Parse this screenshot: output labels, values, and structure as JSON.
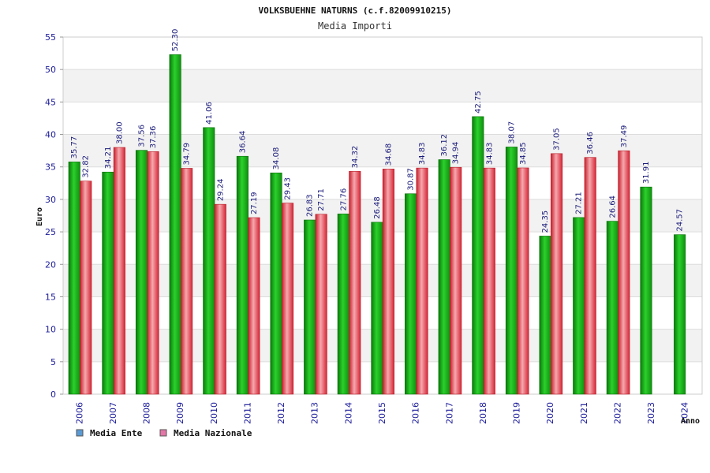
{
  "chart_data": {
    "type": "bar",
    "title": "VOLKSBUEHNE NATURNS (c.f.82009910215)",
    "subtitle": "Media Importi",
    "ylabel": "Euro",
    "xlabel": "Anno",
    "ylim": [
      0,
      55
    ],
    "yticks": [
      0,
      5,
      10,
      15,
      20,
      25,
      30,
      35,
      40,
      45,
      50,
      55
    ],
    "categories": [
      "2006",
      "2007",
      "2008",
      "2009",
      "2010",
      "2011",
      "2012",
      "2013",
      "2014",
      "2015",
      "2016",
      "2017",
      "2018",
      "2019",
      "2020",
      "2021",
      "2022",
      "2023",
      "2024"
    ],
    "series": [
      {
        "name": "Media Ente",
        "values": [
          35.77,
          34.21,
          37.56,
          52.3,
          41.06,
          36.64,
          34.08,
          26.83,
          27.76,
          26.48,
          30.87,
          36.12,
          42.75,
          38.07,
          24.35,
          27.21,
          26.64,
          31.91,
          24.57
        ],
        "labels": [
          "35.77",
          "34.21",
          "37.56",
          "52.30",
          "41.06",
          "36.64",
          "34.08",
          "26.83",
          "27.76",
          "26.48",
          "30.87",
          "36.12",
          "42.75",
          "38.07",
          "24.35",
          "27.21",
          "26.64",
          "31.91",
          "24.57"
        ],
        "color": "#1db51d"
      },
      {
        "name": "Media Nazionale",
        "values": [
          32.82,
          38.0,
          37.36,
          34.79,
          29.24,
          27.19,
          29.43,
          27.71,
          34.32,
          34.68,
          34.83,
          34.94,
          34.83,
          34.85,
          37.05,
          36.46,
          37.49,
          null,
          null
        ],
        "labels": [
          "32.82",
          "38.00",
          "37.36",
          "34.79",
          "29.24",
          "27.19",
          "29.43",
          "27.71",
          "34.32",
          "34.68",
          "34.83",
          "34.94",
          "34.83",
          "34.85",
          "37.05",
          "36.46",
          "37.49",
          "",
          ""
        ],
        "color": "#e8323f"
      }
    ],
    "legend": {
      "placement": "bottom-left",
      "items": [
        {
          "label": "Media Ente",
          "swatch": "#5b9bd5"
        },
        {
          "label": "Media Nazionale",
          "swatch": "#e377a8"
        }
      ]
    },
    "grid": true,
    "band_color": "#f2f2f2"
  }
}
